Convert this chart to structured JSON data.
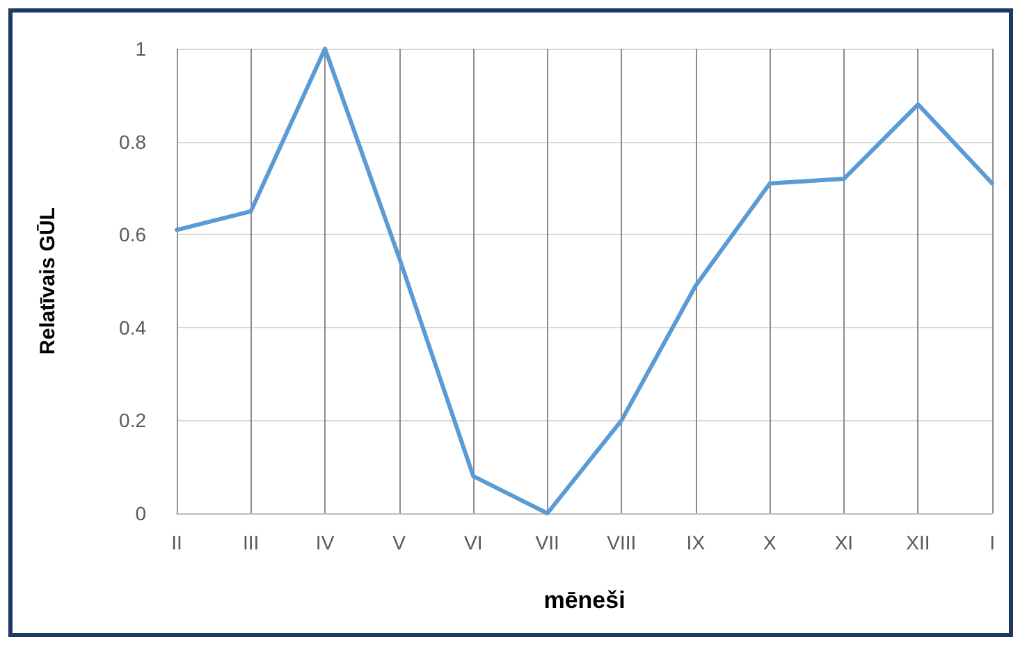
{
  "chart_data": {
    "type": "line",
    "xlabel": "mēneši",
    "ylabel": "Relatīvais GŪL",
    "categories": [
      "II",
      "III",
      "IV",
      "V",
      "VI",
      "VII",
      "VIII",
      "IX",
      "X",
      "XI",
      "XII",
      "I"
    ],
    "series": [
      {
        "color": "#5b9bd5",
        "values": [
          0.61,
          0.65,
          1.0,
          0.55,
          0.08,
          0.0,
          0.2,
          0.49,
          0.71,
          0.72,
          0.88,
          0.71
        ]
      }
    ],
    "ylim": [
      0,
      1
    ],
    "yticks": [
      0,
      0.2,
      0.4,
      0.6,
      0.8,
      1
    ],
    "grid": true,
    "marker": "none",
    "line_style": "solid"
  }
}
